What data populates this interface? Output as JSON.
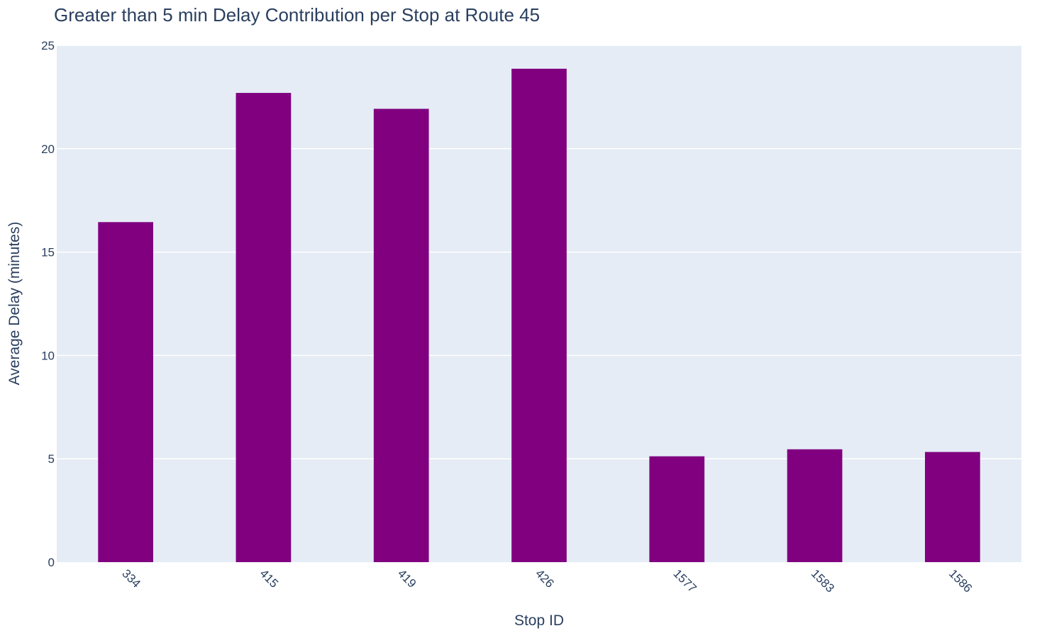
{
  "chart_data": {
    "type": "bar",
    "title": "Greater than 5 min Delay Contribution per Stop at Route 45",
    "xlabel": "Stop ID",
    "ylabel": "Average Delay (minutes)",
    "categories": [
      "334",
      "415",
      "419",
      "426",
      "1577",
      "1583",
      "1586"
    ],
    "values": [
      16.45,
      22.7,
      21.93,
      23.87,
      5.12,
      5.46,
      5.33
    ],
    "ylim": [
      0,
      25
    ],
    "yticks": [
      0,
      5,
      10,
      15,
      20,
      25
    ],
    "grid": true,
    "legend": "none",
    "colors": {
      "bar": "#800080",
      "plot_background": "#e5ecf6",
      "text": "#2a3f5f"
    }
  }
}
